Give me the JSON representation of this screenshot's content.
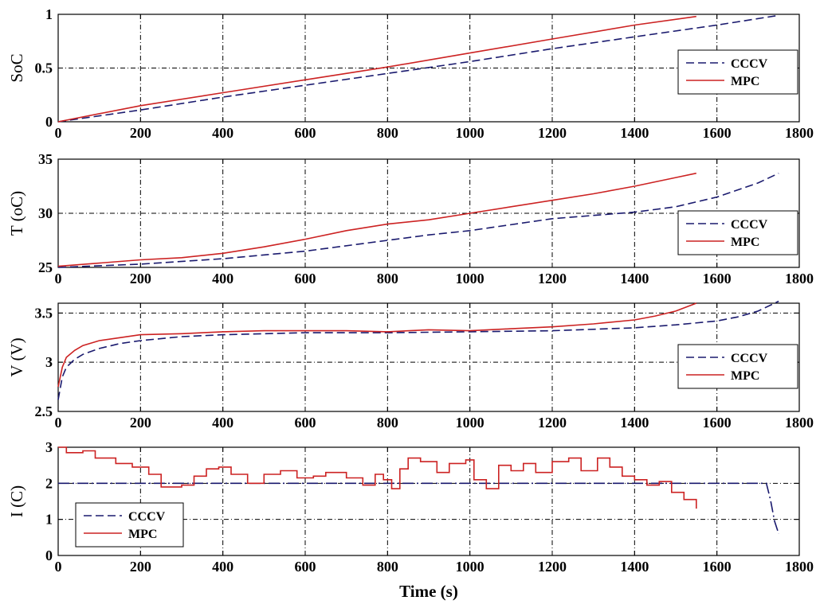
{
  "colors": {
    "cccv": "#1a1a6e",
    "mpc": "#cc2222",
    "grid": "#000000"
  },
  "chart_data": [
    {
      "type": "line",
      "ylabel": "SoC",
      "xlabel": "",
      "xlim": [
        0,
        1800
      ],
      "ylim": [
        0,
        1
      ],
      "xticks": [
        "0",
        "200",
        "400",
        "600",
        "800",
        "1000",
        "1200",
        "1400",
        "1600",
        "1800"
      ],
      "yticks": [
        "0",
        "0.5",
        "1"
      ],
      "legend_position": "right",
      "series": [
        {
          "name": "CCCV",
          "x": [
            0,
            200,
            400,
            600,
            800,
            1000,
            1200,
            1400,
            1600,
            1750
          ],
          "values": [
            0.0,
            0.11,
            0.23,
            0.34,
            0.45,
            0.56,
            0.68,
            0.79,
            0.9,
            0.99
          ]
        },
        {
          "name": "MPC",
          "x": [
            0,
            200,
            400,
            600,
            800,
            1000,
            1200,
            1400,
            1550
          ],
          "values": [
            0.0,
            0.15,
            0.27,
            0.39,
            0.51,
            0.64,
            0.77,
            0.9,
            0.98
          ]
        }
      ]
    },
    {
      "type": "line",
      "ylabel": "T (oC)",
      "xlabel": "",
      "xlim": [
        0,
        1800
      ],
      "ylim": [
        25,
        35
      ],
      "xticks": [
        "0",
        "200",
        "400",
        "600",
        "800",
        "1000",
        "1200",
        "1400",
        "1600",
        "1800"
      ],
      "yticks": [
        "25",
        "30",
        "35"
      ],
      "legend_position": "right",
      "series": [
        {
          "name": "CCCV",
          "x": [
            0,
            200,
            400,
            600,
            800,
            900,
            1000,
            1200,
            1400,
            1500,
            1600,
            1700,
            1750
          ],
          "values": [
            25.0,
            25.3,
            25.8,
            26.5,
            27.5,
            28.0,
            28.4,
            29.5,
            30.1,
            30.6,
            31.5,
            32.8,
            33.7
          ]
        },
        {
          "name": "MPC",
          "x": [
            0,
            200,
            300,
            400,
            500,
            600,
            700,
            800,
            900,
            1000,
            1100,
            1200,
            1300,
            1400,
            1500,
            1550
          ],
          "values": [
            25.1,
            25.7,
            25.9,
            26.3,
            26.9,
            27.6,
            28.4,
            29.0,
            29.4,
            30.0,
            30.6,
            31.2,
            31.8,
            32.5,
            33.3,
            33.7
          ]
        }
      ]
    },
    {
      "type": "line",
      "ylabel": "V (V)",
      "xlabel": "",
      "xlim": [
        0,
        1800
      ],
      "ylim": [
        2.5,
        3.6
      ],
      "xticks": [
        "0",
        "200",
        "400",
        "600",
        "800",
        "1000",
        "1200",
        "1400",
        "1600",
        "1800"
      ],
      "yticks": [
        "2.5",
        "3",
        "3.5"
      ],
      "legend_position": "right",
      "series": [
        {
          "name": "CCCV",
          "x": [
            0,
            10,
            20,
            40,
            60,
            100,
            150,
            200,
            300,
            400,
            600,
            800,
            1000,
            1200,
            1400,
            1500,
            1600,
            1650,
            1700,
            1730,
            1750
          ],
          "values": [
            2.62,
            2.85,
            2.95,
            3.03,
            3.08,
            3.14,
            3.19,
            3.22,
            3.26,
            3.28,
            3.3,
            3.3,
            3.31,
            3.32,
            3.35,
            3.38,
            3.42,
            3.46,
            3.52,
            3.58,
            3.62
          ]
        },
        {
          "name": "MPC",
          "x": [
            0,
            10,
            20,
            40,
            60,
            100,
            150,
            200,
            300,
            400,
            500,
            600,
            700,
            800,
            900,
            1000,
            1100,
            1200,
            1300,
            1400,
            1450,
            1500,
            1550
          ],
          "values": [
            2.75,
            2.95,
            3.05,
            3.12,
            3.17,
            3.22,
            3.25,
            3.28,
            3.29,
            3.31,
            3.32,
            3.32,
            3.32,
            3.31,
            3.33,
            3.32,
            3.34,
            3.36,
            3.39,
            3.43,
            3.47,
            3.52,
            3.6
          ]
        }
      ]
    },
    {
      "type": "line",
      "ylabel": "I (C)",
      "xlabel": "Time (s)",
      "xlim": [
        0,
        1800
      ],
      "ylim": [
        0,
        3
      ],
      "xticks": [
        "0",
        "200",
        "400",
        "600",
        "800",
        "1000",
        "1200",
        "1400",
        "1600",
        "1800"
      ],
      "yticks": [
        "0",
        "1",
        "2",
        "3"
      ],
      "legend_position": "bottom-left",
      "series": [
        {
          "name": "CCCV",
          "x": [
            0,
            1720,
            1730,
            1740,
            1750
          ],
          "values": [
            2.0,
            2.0,
            1.55,
            0.95,
            0.6
          ]
        },
        {
          "name": "MPC",
          "x": [
            0,
            20,
            60,
            90,
            140,
            180,
            220,
            250,
            300,
            330,
            360,
            390,
            420,
            460,
            500,
            540,
            580,
            620,
            650,
            700,
            740,
            770,
            790,
            810,
            830,
            850,
            880,
            920,
            950,
            990,
            1010,
            1040,
            1070,
            1100,
            1130,
            1160,
            1200,
            1240,
            1270,
            1310,
            1340,
            1370,
            1400,
            1430,
            1460,
            1490,
            1520,
            1550
          ],
          "values": [
            3.0,
            2.85,
            2.9,
            2.7,
            2.55,
            2.45,
            2.25,
            1.9,
            1.95,
            2.2,
            2.4,
            2.45,
            2.25,
            2.0,
            2.25,
            2.35,
            2.15,
            2.2,
            2.3,
            2.15,
            1.95,
            2.25,
            2.1,
            1.85,
            2.4,
            2.7,
            2.6,
            2.3,
            2.55,
            2.65,
            2.1,
            1.85,
            2.5,
            2.35,
            2.55,
            2.3,
            2.6,
            2.7,
            2.35,
            2.7,
            2.45,
            2.2,
            2.1,
            1.95,
            2.05,
            1.75,
            1.55,
            1.3
          ]
        }
      ]
    }
  ]
}
